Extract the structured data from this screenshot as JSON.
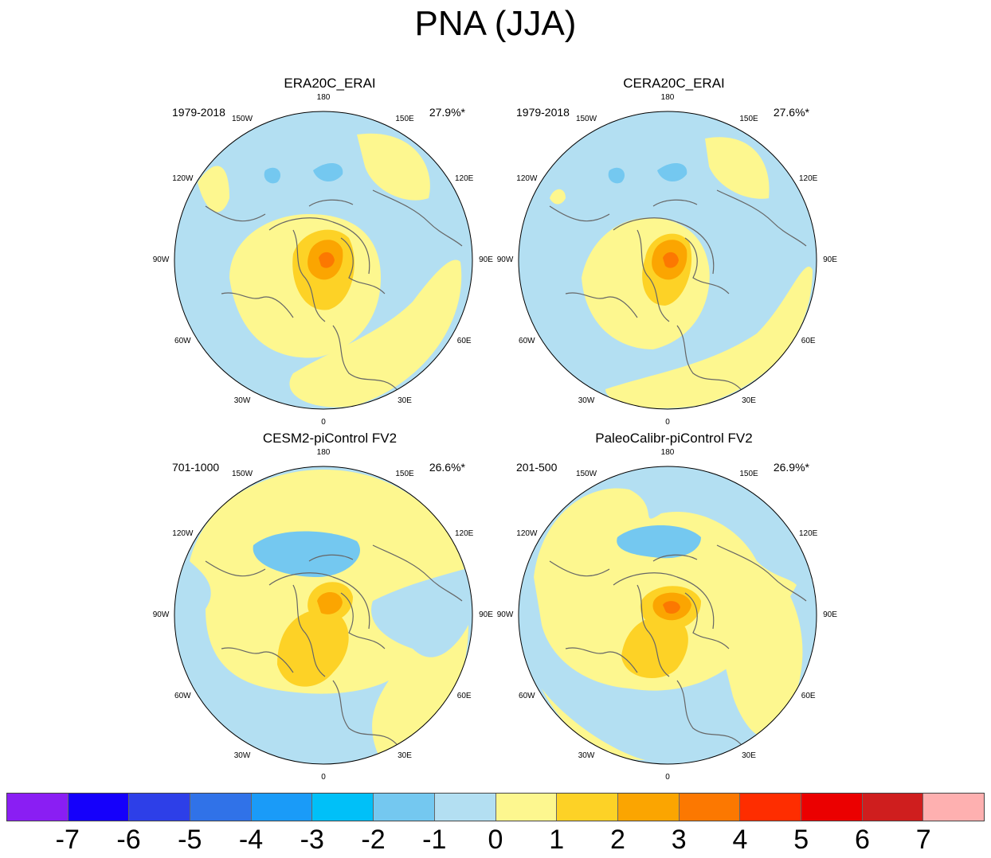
{
  "title": "PNA (JJA)",
  "colors": {
    "ocean_light_blue": "#b3dff2",
    "blue_minus2": "#74c8f0",
    "blue_minus3": "#19bbf2",
    "yellow_pos1": "#fdf78f",
    "gold_pos2": "#fdd226",
    "orange_pos3": "#fba501",
    "orange_pos4": "#fc7801",
    "coast": "#666666"
  },
  "longitude_labels": [
    "180",
    "150E",
    "120E",
    "90E",
    "60E",
    "30E",
    "0",
    "30W",
    "60W",
    "90W",
    "120W",
    "150W"
  ],
  "panels": [
    {
      "title": "ERA20C_ERAI",
      "period": "1979-2018",
      "percent": "27.9%*"
    },
    {
      "title": "CERA20C_ERAI",
      "period": "1979-2018",
      "percent": "27.6%*"
    },
    {
      "title": "CESM2-piControl FV2",
      "period": "701-1000",
      "percent": "26.6%*"
    },
    {
      "title": "PaleoCalibr-piControl FV2",
      "period": "201-500",
      "percent": "26.9%*"
    }
  ],
  "colorbar": {
    "colors": [
      "#8a1ef3",
      "#1500fb",
      "#2d3fe8",
      "#3072e8",
      "#1a9bf8",
      "#00c0f8",
      "#74c8f0",
      "#b3dff2",
      "#fdf78f",
      "#fdd226",
      "#fba501",
      "#fc7801",
      "#fe2d00",
      "#eb0000",
      "#cf1e1e",
      "#feb0b0"
    ],
    "labels": [
      "-7",
      "-6",
      "-5",
      "-4",
      "-3",
      "-2",
      "-1",
      "0",
      "1",
      "2",
      "3",
      "4",
      "5",
      "6",
      "7"
    ]
  }
}
